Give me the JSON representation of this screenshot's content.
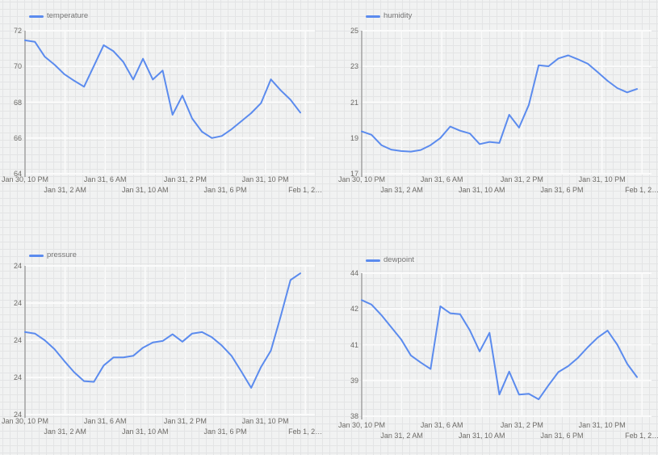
{
  "page": {
    "background_color": "#f1f2f2",
    "accent_color": "#5b8bee",
    "x_axis_span": "Jan 30, 10 PM to Feb 1, 2 AM",
    "layout": "2x2 grid of line charts"
  },
  "chart_data": [
    {
      "type": "line",
      "series_name": "temperature",
      "line_color": "#5b8bee",
      "legend_position": "top-left",
      "grid": true,
      "ylim": [
        64,
        72
      ],
      "y_tick_labels": [
        "72",
        "70",
        "68",
        "66",
        "64"
      ],
      "x_tick_labels": [
        "Jan 30, 10 PM",
        "Jan 31, 2 AM",
        "Jan 31, 6 AM",
        "Jan 31, 10 AM",
        "Jan 31, 2 PM",
        "Jan 31, 6 PM",
        "Jan 31, 10 PM",
        "Feb 1, 2…"
      ],
      "values": [
        71.46,
        71.38,
        70.55,
        70.1,
        69.57,
        69.2,
        68.87,
        70.03,
        71.19,
        70.85,
        70.25,
        69.27,
        70.43,
        69.27,
        69.77,
        67.3,
        68.37,
        67.09,
        66.35,
        66.0,
        66.11,
        66.49,
        66.94,
        67.39,
        67.95,
        69.28,
        68.67,
        68.14,
        67.42
      ]
    },
    {
      "type": "line",
      "series_name": "humidity",
      "line_color": "#5b8bee",
      "legend_position": "top-left",
      "grid": true,
      "ylim": [
        17,
        25
      ],
      "y_tick_labels": [
        "25",
        "23",
        "21",
        "19",
        "17"
      ],
      "x_tick_labels": [
        "Jan 30, 10 PM",
        "Jan 31, 2 AM",
        "Jan 31, 6 AM",
        "Jan 31, 10 AM",
        "Jan 31, 2 PM",
        "Jan 31, 6 PM",
        "Jan 31, 10 PM",
        "Feb 1, 2…"
      ],
      "values": [
        19.37,
        19.18,
        18.6,
        18.35,
        18.27,
        18.24,
        18.33,
        18.6,
        19.0,
        19.64,
        19.41,
        19.25,
        18.66,
        18.78,
        18.72,
        20.3,
        19.58,
        20.85,
        23.07,
        23.01,
        23.45,
        23.62,
        23.4,
        23.15,
        22.68,
        22.2,
        21.79,
        21.55,
        21.74
      ]
    },
    {
      "type": "line",
      "series_name": "pressure",
      "line_color": "#5b8bee",
      "legend_position": "top-left",
      "grid": true,
      "ylim": [
        23.8,
        24.0
      ],
      "y_tick_labels": [
        "24",
        "24",
        "24",
        "24",
        "24"
      ],
      "x_tick_labels": [
        "Jan 30, 10 PM",
        "Jan 31, 2 AM",
        "Jan 31, 6 AM",
        "Jan 31, 10 AM",
        "Jan 31, 2 PM",
        "Jan 31, 6 PM",
        "Jan 31, 10 PM",
        "Feb 1, 2…"
      ],
      "values": [
        23.911,
        23.909,
        23.9,
        23.888,
        23.872,
        23.857,
        23.845,
        23.844,
        23.866,
        23.877,
        23.877,
        23.879,
        23.89,
        23.897,
        23.899,
        23.908,
        23.898,
        23.909,
        23.911,
        23.904,
        23.893,
        23.879,
        23.858,
        23.836,
        23.864,
        23.886,
        23.932,
        23.981,
        23.99
      ]
    },
    {
      "type": "line",
      "series_name": "dewpoint",
      "line_color": "#5b8bee",
      "legend_position": "top-left",
      "grid": true,
      "ylim": [
        38,
        44
      ],
      "y_tick_labels": [
        "44",
        "42",
        "41",
        "39",
        "38"
      ],
      "x_tick_labels": [
        "Jan 30, 10 PM",
        "Jan 31, 2 AM",
        "Jan 31, 6 AM",
        "Jan 31, 10 AM",
        "Jan 31, 2 PM",
        "Jan 31, 6 PM",
        "Jan 31, 10 PM",
        "Feb 1, 2…"
      ],
      "values": [
        42.87,
        42.68,
        42.24,
        41.74,
        41.23,
        40.55,
        40.25,
        39.98,
        42.61,
        42.32,
        42.28,
        41.6,
        40.72,
        41.5,
        38.91,
        39.87,
        38.91,
        38.94,
        38.71,
        39.3,
        39.85,
        40.1,
        40.45,
        40.9,
        41.3,
        41.59,
        41.0,
        40.2,
        39.64
      ]
    }
  ]
}
